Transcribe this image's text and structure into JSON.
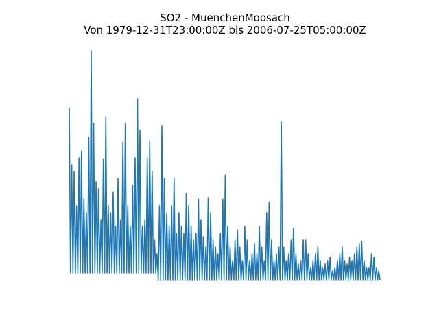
{
  "chart_data": {
    "type": "line",
    "title": "SO2 - MuenchenMoosach",
    "subtitle": "Von 1979-12-31T23:00:00Z bis 2006-07-25T05:00:00Z",
    "series": [
      {
        "color": "#1f77b4",
        "values": [
          253,
          12,
          170,
          12,
          160,
          12,
          110,
          12,
          180,
          12,
          190,
          12,
          120,
          12,
          100,
          12,
          210,
          12,
          336,
          12,
          230,
          12,
          145,
          12,
          135,
          12,
          90,
          12,
          178,
          12,
          240,
          12,
          110,
          12,
          100,
          12,
          130,
          12,
          80,
          12,
          150,
          12,
          90,
          12,
          203,
          12,
          230,
          12,
          110,
          12,
          80,
          12,
          140,
          12,
          180,
          12,
          266,
          12,
          220,
          12,
          80,
          12,
          90,
          12,
          180,
          12,
          205,
          12,
          160,
          12,
          60,
          12,
          40,
          2,
          110,
          2,
          227,
          2,
          150,
          2,
          100,
          2,
          80,
          2,
          110,
          2,
          150,
          2,
          70,
          2,
          100,
          2,
          80,
          2,
          70,
          2,
          128,
          2,
          110,
          2,
          80,
          2,
          60,
          2,
          70,
          2,
          120,
          2,
          90,
          2,
          65,
          2,
          50,
          2,
          122,
          2,
          100,
          2,
          60,
          2,
          50,
          2,
          40,
          2,
          70,
          2,
          120,
          2,
          155,
          2,
          80,
          2,
          50,
          2,
          30,
          2,
          60,
          2,
          75,
          2,
          50,
          2,
          30,
          2,
          80,
          2,
          60,
          2,
          30,
          2,
          40,
          2,
          55,
          2,
          40,
          2,
          80,
          2,
          50,
          2,
          30,
          2,
          100,
          2,
          115,
          2,
          60,
          2,
          30,
          2,
          40,
          2,
          50,
          2,
          232,
          2,
          50,
          2,
          30,
          2,
          40,
          2,
          60,
          2,
          77,
          2,
          40,
          2,
          25,
          2,
          30,
          2,
          60,
          2,
          60,
          2,
          40,
          2,
          20,
          2,
          30,
          2,
          40,
          2,
          50,
          2,
          30,
          2,
          20,
          2,
          25,
          2,
          30,
          2,
          35,
          2,
          15,
          2,
          20,
          2,
          30,
          2,
          40,
          2,
          50,
          2,
          30,
          2,
          25,
          2,
          35,
          2,
          30,
          2,
          40,
          2,
          50,
          2,
          55,
          2,
          58,
          2,
          30,
          2,
          20,
          2,
          20,
          2,
          40,
          2,
          35,
          2,
          20,
          2,
          15,
          2
        ]
      }
    ]
  }
}
